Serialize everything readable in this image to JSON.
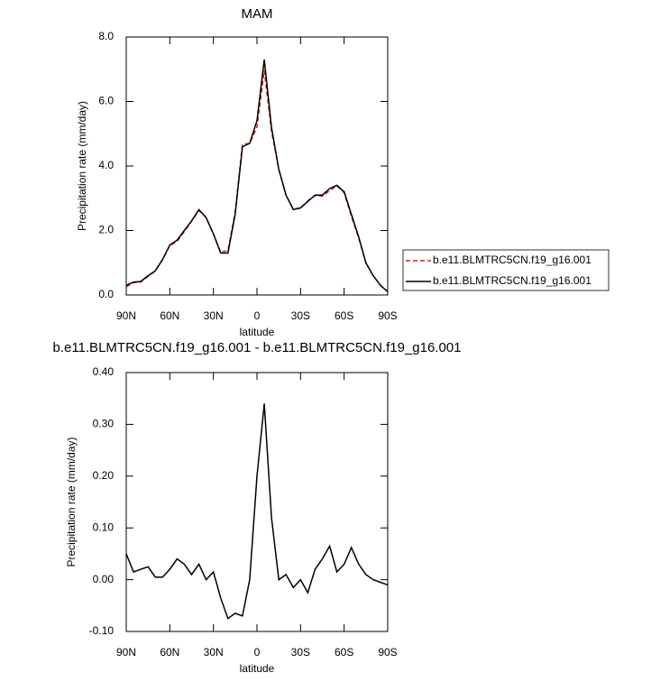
{
  "chart_data": [
    {
      "type": "line",
      "title": "MAM",
      "xlabel": "latitude",
      "ylabel": "Precipitation rate (mm/day)",
      "x": [
        90,
        85,
        80,
        75,
        70,
        65,
        60,
        55,
        50,
        45,
        40,
        35,
        30,
        25,
        20,
        15,
        10,
        5,
        0,
        -5,
        -10,
        -15,
        -20,
        -25,
        -30,
        -35,
        -40,
        -45,
        -50,
        -55,
        -60,
        -65,
        -70,
        -75,
        -80,
        -85,
        -90
      ],
      "series": [
        {
          "name": "b.e11.BLMTRC5CN.f19_g16.001",
          "color": "#d62020",
          "dash": true,
          "values": [
            0.25,
            0.385,
            0.4,
            0.575,
            0.745,
            1.095,
            1.53,
            1.66,
            1.97,
            2.29,
            2.62,
            2.4,
            1.885,
            1.335,
            1.375,
            2.565,
            4.67,
            4.7,
            5.2,
            6.96,
            5.08,
            3.9,
            3.09,
            2.665,
            2.7,
            2.925,
            3.08,
            3.06,
            3.235,
            3.385,
            3.17,
            2.438,
            1.77,
            0.99,
            0.6,
            0.305,
            0.11
          ]
        },
        {
          "name": "b.e11.BLMTRC5CN.f19_g16.001",
          "color": "#000000",
          "dash": false,
          "values": [
            0.3,
            0.4,
            0.42,
            0.6,
            0.75,
            1.1,
            1.55,
            1.7,
            2.0,
            2.3,
            2.65,
            2.4,
            1.9,
            1.3,
            1.3,
            2.5,
            4.6,
            4.7,
            5.4,
            7.3,
            5.2,
            3.9,
            3.1,
            2.65,
            2.7,
            2.9,
            3.1,
            3.1,
            3.3,
            3.4,
            3.2,
            2.5,
            1.8,
            1.0,
            0.6,
            0.3,
            0.1
          ]
        }
      ],
      "xlim": [
        90,
        -90
      ],
      "xticks": [
        {
          "value": 90,
          "label": "90N"
        },
        {
          "value": 60,
          "label": "60N"
        },
        {
          "value": 30,
          "label": "30N"
        },
        0,
        {
          "value": -30,
          "label": "30S"
        },
        {
          "value": -60,
          "label": "60S"
        },
        {
          "value": -90,
          "label": "90S"
        }
      ],
      "ylim": [
        0,
        8
      ],
      "yticks": [
        {
          "value": 0,
          "label": "0.0"
        },
        {
          "value": 2,
          "label": "2.0"
        },
        {
          "value": 4,
          "label": "4.0"
        },
        {
          "value": 6,
          "label": "6.0"
        },
        {
          "value": 8,
          "label": "8.0"
        }
      ],
      "legend": "right"
    },
    {
      "type": "line",
      "title": "b.e11.BLMTRC5CN.f19_g16.001 - b.e11.BLMTRC5CN.f19_g16.001",
      "xlabel": "latitude",
      "ylabel": "Precipitation rate (mm/day)",
      "x": [
        90,
        85,
        80,
        75,
        70,
        65,
        60,
        55,
        50,
        45,
        40,
        35,
        30,
        25,
        20,
        15,
        10,
        5,
        0,
        -5,
        -10,
        -15,
        -20,
        -25,
        -30,
        -35,
        -40,
        -45,
        -50,
        -55,
        -60,
        -65,
        -70,
        -75,
        -80,
        -85,
        -90
      ],
      "series": [
        {
          "color": "#000000",
          "dash": false,
          "values": [
            0.05,
            0.015,
            0.02,
            0.025,
            0.005,
            0.005,
            0.02,
            0.04,
            0.03,
            0.01,
            0.03,
            0.0,
            0.015,
            -0.035,
            -0.075,
            -0.065,
            -0.07,
            0.0,
            0.2,
            0.34,
            0.12,
            0.0,
            0.01,
            -0.015,
            0.0,
            -0.025,
            0.02,
            0.04,
            0.065,
            0.015,
            0.03,
            0.062,
            0.03,
            0.01,
            0.0,
            -0.005,
            -0.01
          ]
        }
      ],
      "xlim": [
        90,
        -90
      ],
      "xticks": [
        {
          "value": 90,
          "label": "90N"
        },
        {
          "value": 60,
          "label": "60N"
        },
        {
          "value": 30,
          "label": "30N"
        },
        0,
        {
          "value": -30,
          "label": "30S"
        },
        {
          "value": -60,
          "label": "60S"
        },
        {
          "value": -90,
          "label": "90S"
        }
      ],
      "ylim": [
        -0.1,
        0.4
      ],
      "yticks": [
        {
          "value": -0.1,
          "label": "-0.10"
        },
        {
          "value": 0,
          "label": "0.00"
        },
        {
          "value": 0.1,
          "label": "0.10"
        },
        {
          "value": 0.2,
          "label": "0.20"
        },
        {
          "value": 0.3,
          "label": "0.30"
        },
        {
          "value": 0.4,
          "label": "0.40"
        }
      ]
    }
  ]
}
